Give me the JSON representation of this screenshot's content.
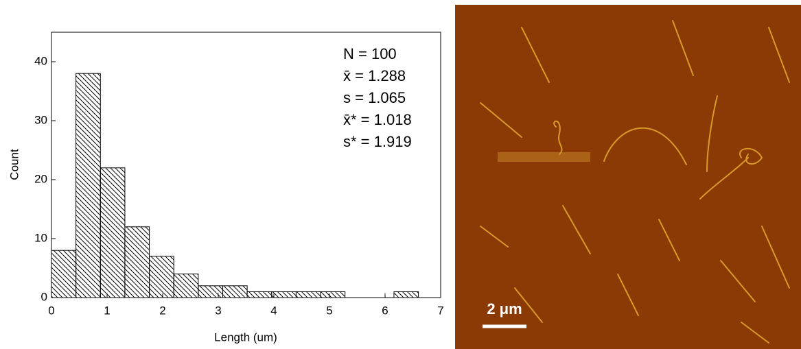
{
  "chart_data": {
    "type": "histogram",
    "xlabel": "Length (um)",
    "ylabel": "Count",
    "bins": [
      0,
      0.44,
      0.88,
      1.32,
      1.76,
      2.2,
      2.64,
      3.08,
      3.52,
      3.96,
      4.4,
      4.84,
      5.28,
      5.72,
      6.16,
      6.6
    ],
    "values": [
      8,
      38,
      22,
      12,
      7,
      4,
      2,
      2,
      1,
      1,
      1,
      1,
      0,
      0,
      1
    ],
    "xlim": [
      0,
      7
    ],
    "xticks": [
      0,
      1,
      2,
      3,
      4,
      5,
      6,
      7
    ],
    "ylim": [
      0,
      45
    ],
    "yticks": [
      0,
      10,
      20,
      30,
      40
    ],
    "annotations": [
      "N = 100",
      "x̄ = 1.288",
      "s = 1.065",
      "x̄* = 1.018",
      "s* = 1.919"
    ],
    "color": "#000000"
  },
  "image": {
    "scale_bar": "2 μm"
  }
}
